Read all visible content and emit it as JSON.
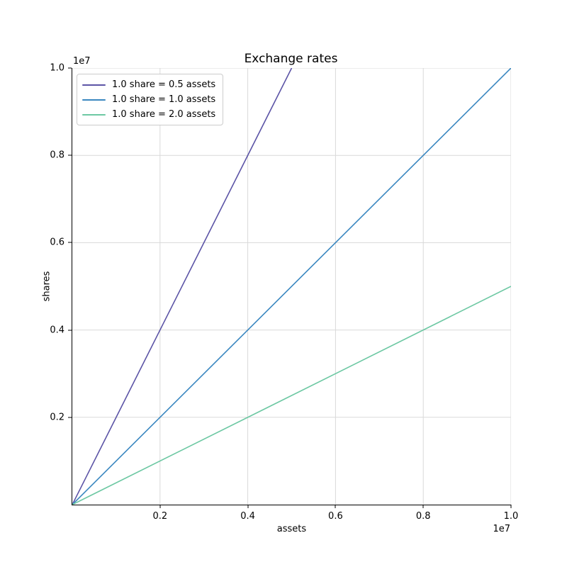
{
  "chart_data": {
    "type": "line",
    "title": "Exchange rates",
    "xlabel": "assets",
    "ylabel": "shares",
    "offset_text": "1e7",
    "xlim": [
      0,
      10000000
    ],
    "ylim": [
      0,
      10000000
    ],
    "x_ticks": [
      2000000,
      4000000,
      6000000,
      8000000,
      10000000
    ],
    "x_tick_labels": [
      "0.2",
      "0.4",
      "0.6",
      "0.8",
      "1.0"
    ],
    "y_ticks": [
      2000000,
      4000000,
      6000000,
      8000000,
      10000000
    ],
    "y_tick_labels": [
      "0.2",
      "0.4",
      "0.6",
      "0.8",
      "1.0"
    ],
    "grid": true,
    "grid_color": "#d9d9d9",
    "axis_color": "#000000",
    "legend_position": "upper left",
    "series": [
      {
        "label": "1.0 share = 0.5 assets",
        "color": "#5c54a6",
        "x": [
          0,
          5000000
        ],
        "y": [
          0,
          10000000
        ]
      },
      {
        "label": "1.0 share = 1.0 assets",
        "color": "#3a87c0",
        "x": [
          0,
          10000000
        ],
        "y": [
          0,
          10000000
        ]
      },
      {
        "label": "1.0 share = 2.0 assets",
        "color": "#6dc8a3",
        "x": [
          0,
          10000000
        ],
        "y": [
          0,
          5000000
        ]
      }
    ]
  }
}
